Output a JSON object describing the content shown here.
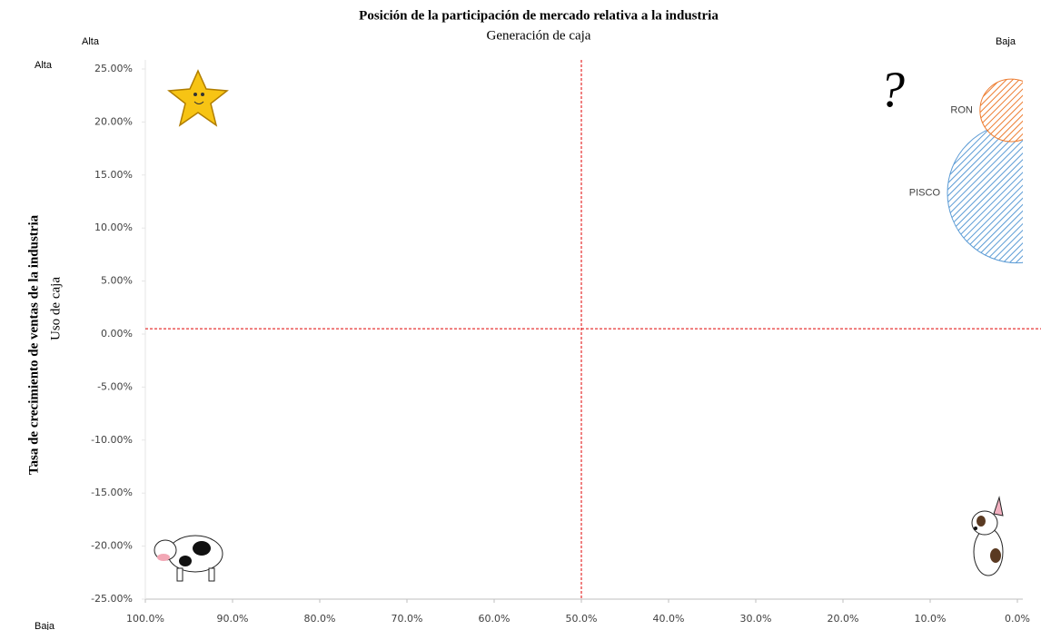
{
  "chart_data": {
    "type": "bubble",
    "title": "Posición de la participación de mercado relativa a la industria",
    "x_label": "Generación de caja",
    "x_axis_ends": [
      "Alta",
      "Baja"
    ],
    "y_label": "Tasa de crecimiento de ventas de la industria",
    "y_sublabel": "Uso de caja",
    "y_axis_ends": [
      "Alta",
      "Baja"
    ],
    "quadrant_symbol": "?",
    "xlim": [
      100,
      0
    ],
    "xticks": [
      {
        "value": 100,
        "label": "100.0%"
      },
      {
        "value": 90,
        "label": "90.0%"
      },
      {
        "value": 80,
        "label": "80.0%"
      },
      {
        "value": 70,
        "label": "70.0%"
      },
      {
        "value": 60,
        "label": "60.0%"
      },
      {
        "value": 50,
        "label": "50.0%"
      },
      {
        "value": 40,
        "label": "40.0%"
      },
      {
        "value": 30,
        "label": "30.0%"
      },
      {
        "value": 20,
        "label": "20.0%"
      },
      {
        "value": 10,
        "label": "10.0%"
      },
      {
        "value": 0,
        "label": "0.0%"
      }
    ],
    "ylim": [
      -25,
      25
    ],
    "yticks": [
      {
        "value": 25,
        "label": "25.00%"
      },
      {
        "value": 20,
        "label": "20.00%"
      },
      {
        "value": 15,
        "label": "15.00%"
      },
      {
        "value": 10,
        "label": "10.00%"
      },
      {
        "value": 5,
        "label": "5.00%"
      },
      {
        "value": 0,
        "label": "0.00%"
      },
      {
        "value": -5,
        "label": "-5.00%"
      },
      {
        "value": -10,
        "label": "-10.00%"
      },
      {
        "value": -15,
        "label": "-15.00%"
      },
      {
        "value": -20,
        "label": "-20.00%"
      },
      {
        "value": -25,
        "label": "-25.00%"
      }
    ],
    "reference_lines": {
      "x": 50,
      "y": 0.5,
      "color": "#e00000"
    },
    "series": [
      {
        "name": "PISCO",
        "color": "#5b9bd5",
        "x": [
          0
        ],
        "values": [
          13.3
        ],
        "sizes": [
          100
        ]
      },
      {
        "name": "RON",
        "color": "#ed7d31",
        "x": [
          0.7
        ],
        "values": [
          21.1
        ],
        "sizes": [
          20
        ]
      }
    ]
  }
}
